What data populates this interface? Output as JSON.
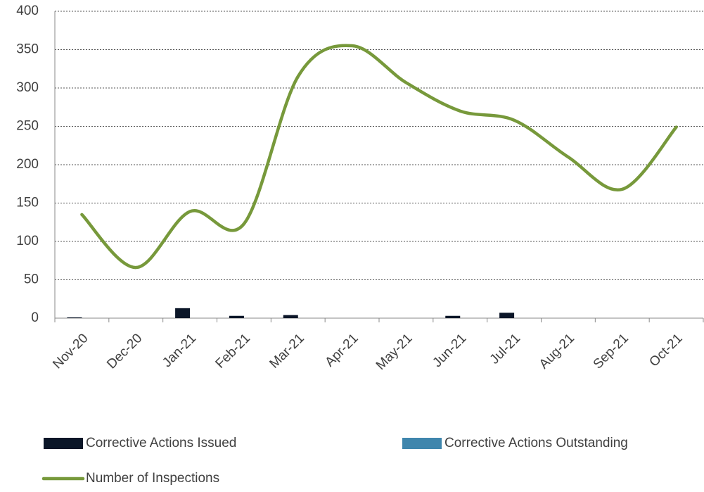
{
  "chart_data": {
    "type": "bar",
    "categories": [
      "Nov-20",
      "Dec-20",
      "Jan-21",
      "Feb-21",
      "Mar-21",
      "Apr-21",
      "May-21",
      "Jun-21",
      "Jul-21",
      "Aug-21",
      "Sep-21",
      "Oct-21"
    ],
    "series": [
      {
        "name": "Corrective Actions Issued",
        "type": "bar",
        "color": "#0b1628",
        "values": [
          1,
          0,
          13,
          3,
          4,
          0,
          0,
          3,
          7,
          0,
          0,
          0
        ]
      },
      {
        "name": "Corrective Actions Outstanding",
        "type": "bar",
        "color": "#3f86ad",
        "values": [
          0,
          0,
          0,
          0,
          0,
          0,
          0,
          0,
          0,
          0,
          0,
          0
        ]
      },
      {
        "name": "Number of Inspections",
        "type": "line",
        "color": "#77993b",
        "values": [
          135,
          66,
          139,
          123,
          315,
          355,
          307,
          270,
          258,
          210,
          168,
          249
        ]
      }
    ],
    "ylim": [
      0,
      400
    ],
    "yticks": [
      0,
      50,
      100,
      150,
      200,
      250,
      300,
      350,
      400
    ],
    "grid": true,
    "smooth": true,
    "legend": "bottom"
  }
}
